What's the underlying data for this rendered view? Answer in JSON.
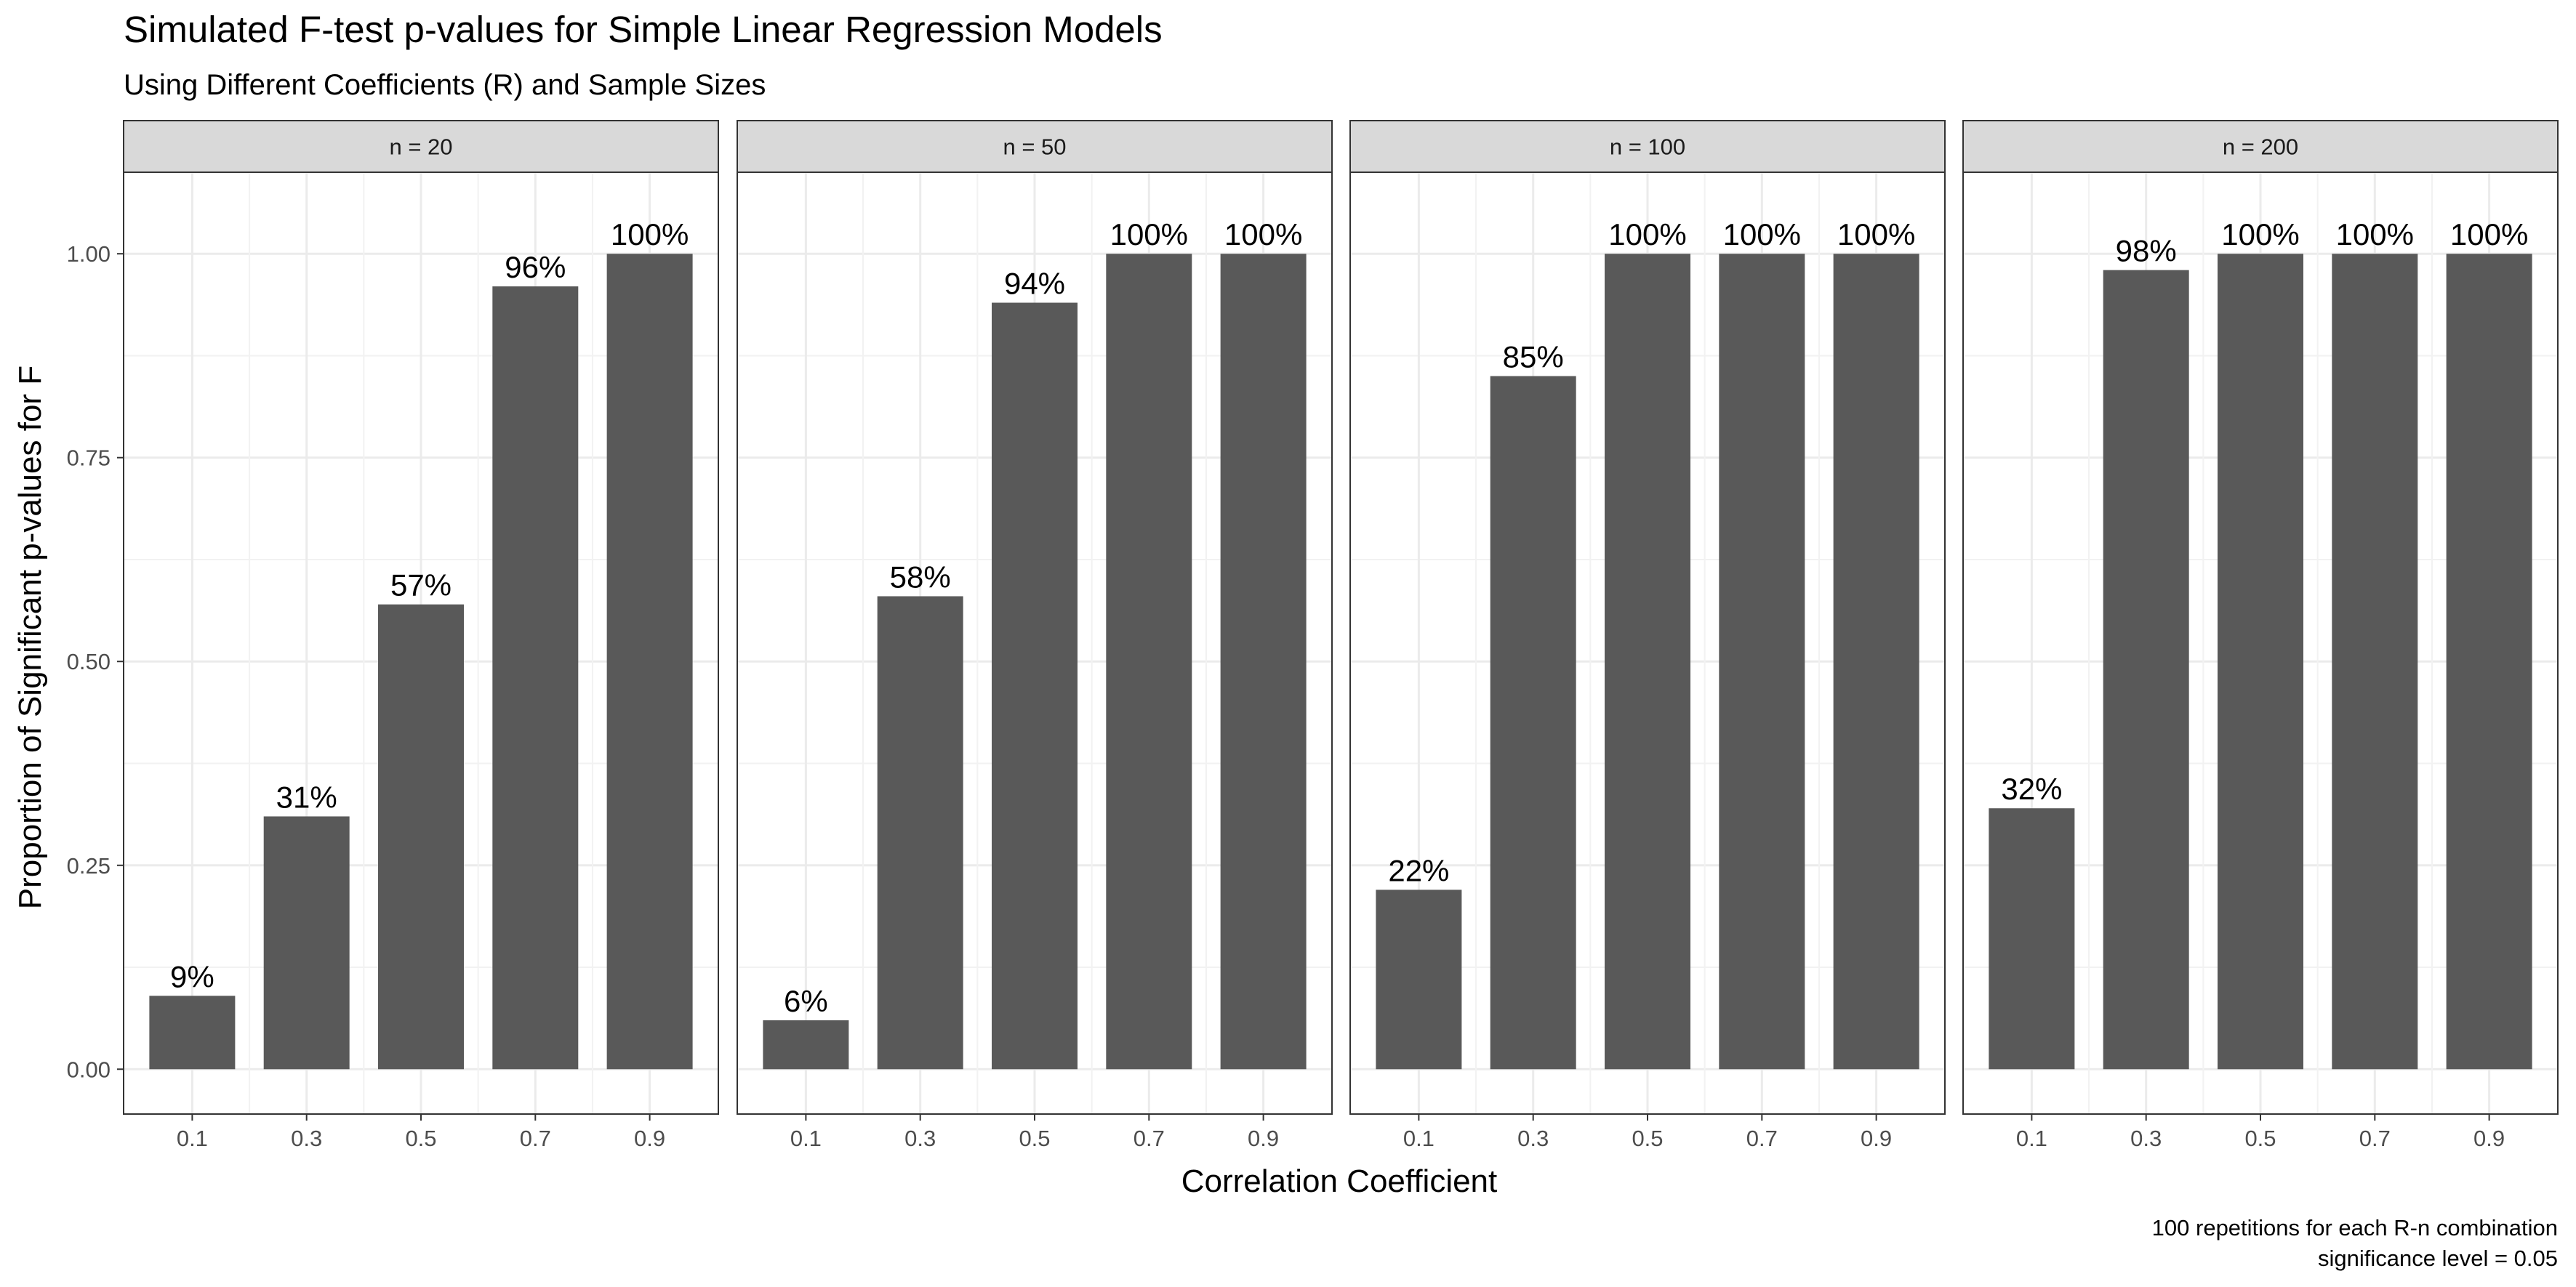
{
  "chart_data": {
    "type": "bar",
    "title": "Simulated F-test p-values for Simple Linear Regression Models",
    "subtitle": "Using Different Coefficients (R) and Sample Sizes",
    "xlabel": "Correlation Coefficient",
    "ylabel": "Proportion of Significant p-values for F",
    "caption": [
      "100 repetitions for each R-n combination",
      "significance level = 0.05"
    ],
    "ylim": [
      -0.055,
      1.1
    ],
    "yticks": [
      0,
      0.25,
      0.5,
      0.75,
      1
    ],
    "ytick_labels": [
      "0.00",
      "0.25",
      "0.50",
      "0.75",
      "1.00"
    ],
    "grid": true,
    "bar_color": "#595959",
    "strip_color": "#d9d9d9",
    "categories": [
      "0.1",
      "0.3",
      "0.5",
      "0.7",
      "0.9"
    ],
    "panels": [
      {
        "facet": "n = 20",
        "values": [
          0.09,
          0.31,
          0.57,
          0.96,
          1.0
        ],
        "labels": [
          "9%",
          "31%",
          "57%",
          "96%",
          "100%"
        ]
      },
      {
        "facet": "n = 50",
        "values": [
          0.06,
          0.58,
          0.94,
          1.0,
          1.0
        ],
        "labels": [
          "6%",
          "58%",
          "94%",
          "100%",
          "100%"
        ]
      },
      {
        "facet": "n = 100",
        "values": [
          0.22,
          0.85,
          1.0,
          1.0,
          1.0
        ],
        "labels": [
          "22%",
          "85%",
          "100%",
          "100%",
          "100%"
        ]
      },
      {
        "facet": "n = 200",
        "values": [
          0.32,
          0.98,
          1.0,
          1.0,
          1.0
        ],
        "labels": [
          "32%",
          "98%",
          "100%",
          "100%",
          "100%"
        ]
      }
    ]
  }
}
